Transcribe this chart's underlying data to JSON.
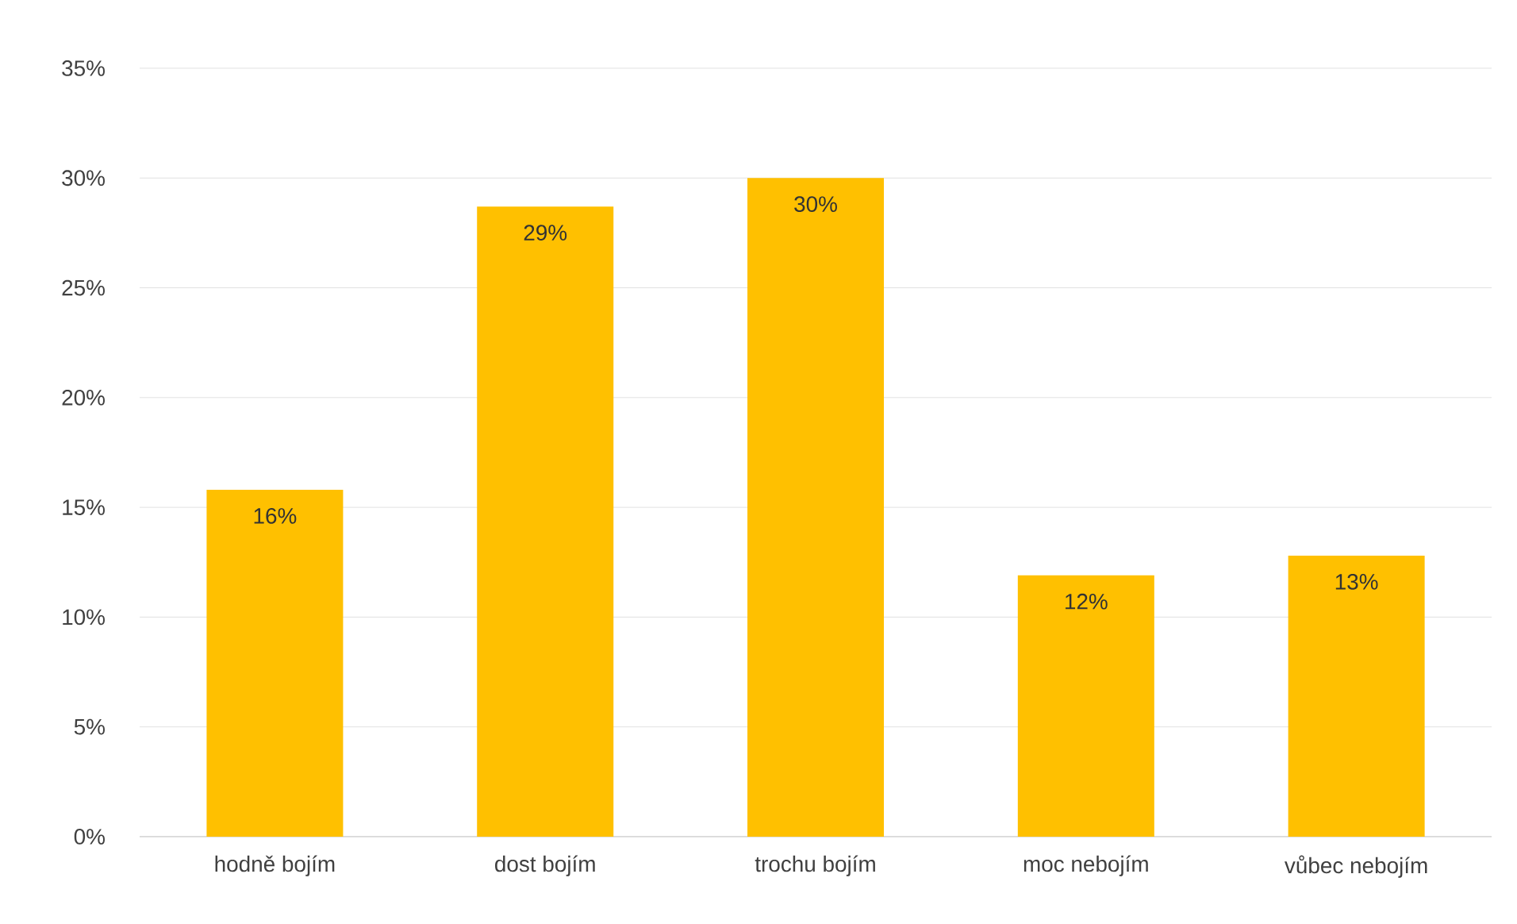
{
  "chart_data": {
    "type": "bar",
    "categories": [
      "hodně bojím",
      "dost bojím",
      "trochu bojím",
      "moc nebojím",
      "vůbec nebojím"
    ],
    "values": [
      15.8,
      28.7,
      30.0,
      11.9,
      12.8
    ],
    "value_labels": [
      "16%",
      "29%",
      "30%",
      "12%",
      "13%"
    ],
    "color": "#ffc000",
    "ylim": [
      0,
      35
    ],
    "yticks": [
      {
        "value": 0,
        "label": "0%"
      },
      {
        "value": 5,
        "label": "5%"
      },
      {
        "value": 10,
        "label": "10%"
      },
      {
        "value": 15,
        "label": "15%"
      },
      {
        "value": 20,
        "label": "20%"
      },
      {
        "value": 25,
        "label": "25%"
      },
      {
        "value": 30,
        "label": "30%"
      },
      {
        "value": 35,
        "label": "35%"
      }
    ],
    "grid": "y"
  }
}
